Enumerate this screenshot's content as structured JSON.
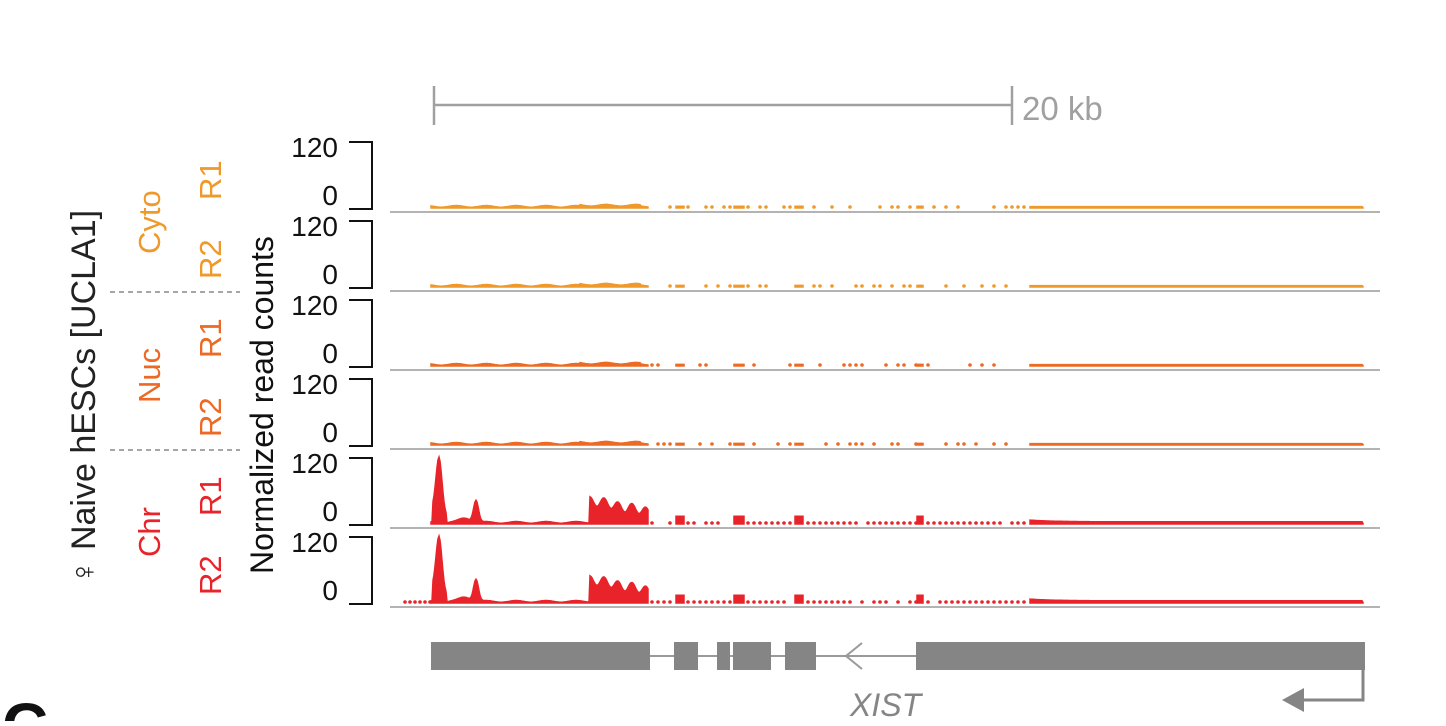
{
  "scale_bar": {
    "label": "20 kb",
    "color": "#a0a0a0"
  },
  "panel_letter": "C",
  "labels": {
    "sample": "♀ Naive hESCs [UCLA1]",
    "y_axis": "Normalized read counts",
    "y_tick_max": "120",
    "y_tick_min": "0"
  },
  "groups": [
    {
      "name": "Cyto",
      "color": "#f0992b"
    },
    {
      "name": "Nuc",
      "color": "#ec6a24"
    },
    {
      "name": "Chr",
      "color": "#e8242a"
    }
  ],
  "tracks": [
    {
      "replicate": "R1",
      "group": "Cyto",
      "color": "#f0992b"
    },
    {
      "replicate": "R2",
      "group": "Cyto",
      "color": "#f0992b"
    },
    {
      "replicate": "R1",
      "group": "Nuc",
      "color": "#ec6a24"
    },
    {
      "replicate": "R2",
      "group": "Nuc",
      "color": "#ec6a24"
    },
    {
      "replicate": "R1",
      "group": "Chr",
      "color": "#e8242a"
    },
    {
      "replicate": "R2",
      "group": "Chr",
      "color": "#e8242a"
    }
  ],
  "gene": {
    "name": "XIST",
    "color": "#858585"
  }
}
